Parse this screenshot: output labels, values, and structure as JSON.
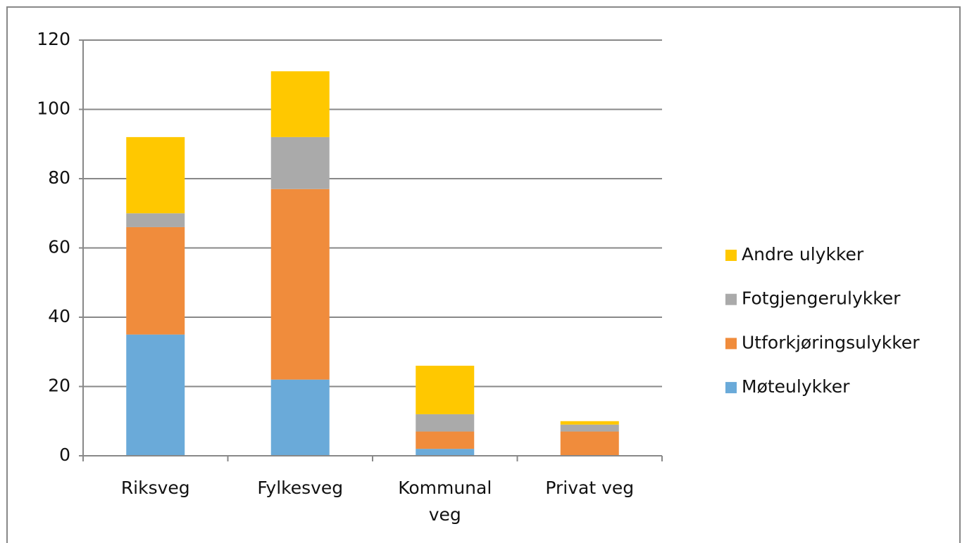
{
  "chart_data": {
    "type": "stacked-bar",
    "categories": [
      "Riksveg",
      "Fylkesveg",
      "Kommunal veg",
      "Privat veg"
    ],
    "series": [
      {
        "name": "Møteulykker",
        "color": "#6aaad9",
        "values": [
          35,
          22,
          2,
          0
        ]
      },
      {
        "name": "Utforkjøringsulykker",
        "color": "#f08c3c",
        "values": [
          31,
          55,
          5,
          7
        ]
      },
      {
        "name": "Fotgjengerulykker",
        "color": "#aaaaaa",
        "values": [
          4,
          15,
          5,
          2
        ]
      },
      {
        "name": "Andre ulykker",
        "color": "#ffc800",
        "values": [
          22,
          19,
          14,
          1
        ]
      }
    ],
    "ylim": [
      0,
      120
    ],
    "yticks": [
      0,
      20,
      40,
      60,
      80,
      100,
      120
    ],
    "grid": true,
    "legend": "right"
  }
}
